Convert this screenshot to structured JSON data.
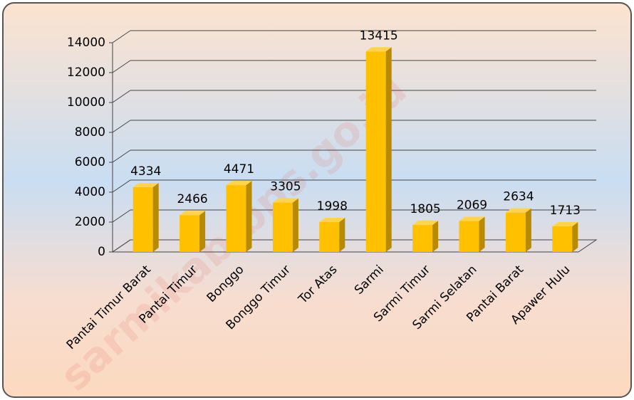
{
  "chart_data": {
    "type": "bar3d",
    "categories": [
      "Pantai Timur Barat",
      "Pantai Timur",
      "Bonggo",
      "Bonggo Timur",
      "Tor Atas",
      "Sarmi",
      "Sarmi Timur",
      "Sarmi Selatan",
      "Pantai Barat",
      "Apawer Hulu"
    ],
    "values": [
      4334,
      2466,
      4471,
      3305,
      1998,
      13415,
      1805,
      2069,
      2634,
      1713
    ],
    "color": "#ffc000",
    "ylim": [
      0,
      14000
    ],
    "yticks": [
      0,
      2000,
      4000,
      6000,
      8000,
      10000,
      12000,
      14000
    ],
    "grid": true,
    "watermark": "sarmikab.bps.go.id"
  }
}
